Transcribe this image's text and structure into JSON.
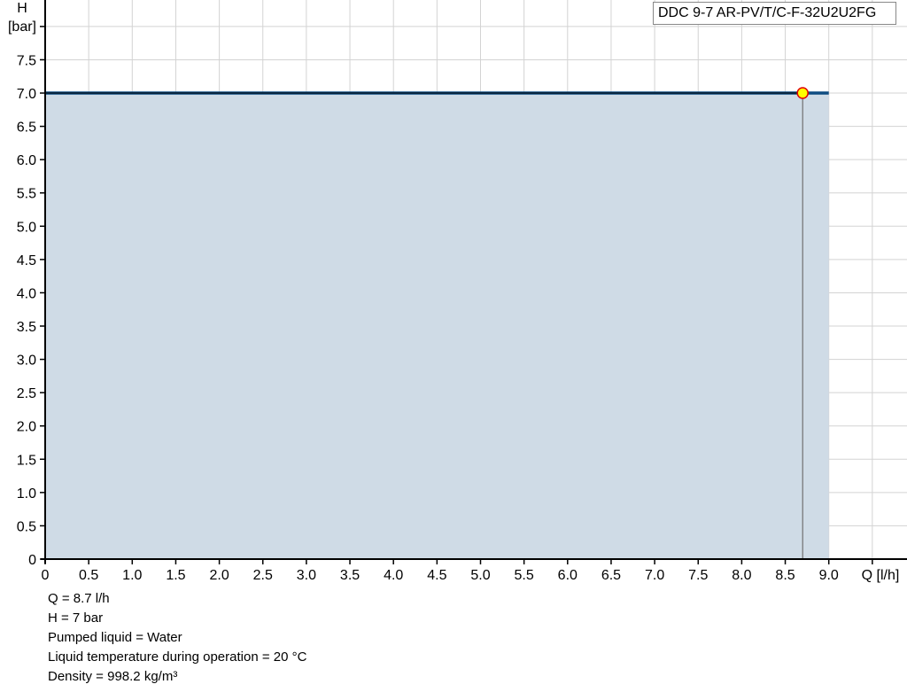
{
  "chart_data": {
    "type": "area",
    "title": "",
    "xlabel": "Q [l/h]",
    "ylabel_top": "H",
    "ylabel_unit": "[bar]",
    "xlim": [
      0,
      9.75
    ],
    "ylim": [
      0,
      8.4
    ],
    "grid": true,
    "x_ticks": [
      "0",
      "0.5",
      "1.0",
      "1.5",
      "2.0",
      "2.5",
      "3.0",
      "3.5",
      "4.0",
      "4.5",
      "5.0",
      "5.5",
      "6.0",
      "6.5",
      "7.0",
      "7.5",
      "8.0",
      "8.5",
      "9.0"
    ],
    "y_ticks": [
      "0",
      "0.5",
      "1.0",
      "1.5",
      "2.0",
      "2.5",
      "3.0",
      "3.5",
      "4.0",
      "4.5",
      "5.0",
      "5.5",
      "6.0",
      "6.5",
      "7.0",
      "7.5"
    ],
    "series": [
      {
        "name": "DDC 9-7 AR-PV/T/C-F-32U2U2FG",
        "x": [
          0,
          9.0
        ],
        "y": [
          7.0,
          7.0
        ]
      }
    ],
    "operating_point": {
      "x": 8.7,
      "y": 7.0
    },
    "legend": "top-right",
    "colors": {
      "line": "#0f4c81",
      "fill": "#cfdbe6",
      "point_fill": "#ffff00",
      "point_stroke": "#e00000",
      "grid": "#d3d3d3"
    }
  },
  "info": {
    "q": "Q = 8.7 l/h",
    "h": "H = 7 bar",
    "liquid": "Pumped liquid = Water",
    "temperature": "Liquid temperature during operation = 20 °C",
    "density": "Density = 998.2 kg/m³"
  }
}
